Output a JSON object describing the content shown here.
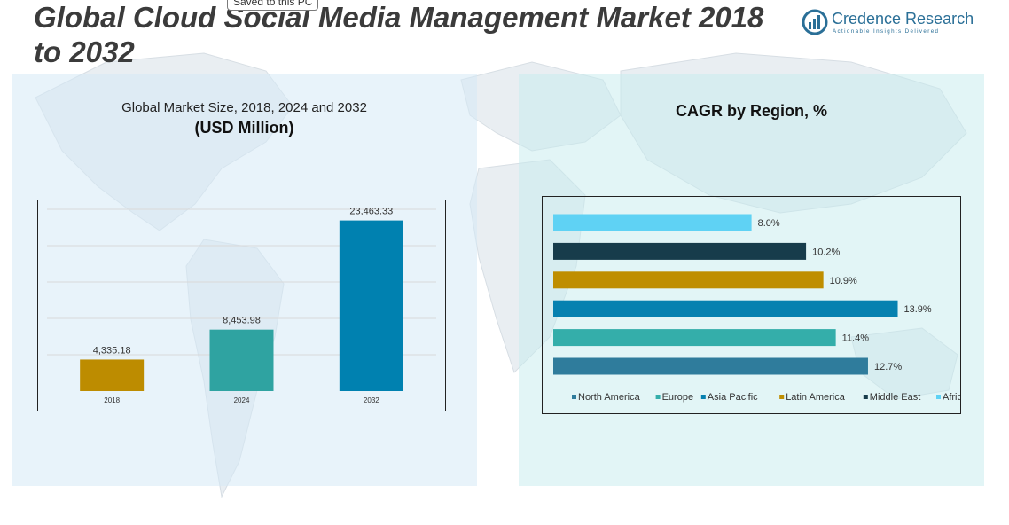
{
  "page": {
    "title": "Global Cloud Social Media Management Market 2018 to 2032",
    "tooltip": "Saved to this PC"
  },
  "logo": {
    "name": "Credence Research",
    "tagline": "Actionable Insights Delivered",
    "color": "#2a6f97",
    "icon": "bar-chart-logo-icon"
  },
  "panels": {
    "left_subtitle": "Global Market Size, 2018, 2024 and 2032",
    "left_unit": "(USD Million)",
    "right_title": "CAGR by Region, %"
  },
  "chart_data": [
    {
      "type": "bar",
      "categories": [
        "2018",
        "2024",
        "2032"
      ],
      "values": [
        4335.18,
        8453.98,
        23463.33
      ],
      "data_labels": [
        "4,335.18",
        "8,453.98",
        "23,463.33"
      ],
      "colors": [
        "#bd8c00",
        "#2fa3a1",
        "#0081b0"
      ],
      "ylim": [
        0,
        25000
      ],
      "grid": true
    },
    {
      "type": "bar",
      "orientation": "horizontal",
      "categories": [
        "North America",
        "Europe",
        "Asia Pacific",
        "Latin America",
        "Middle East",
        "Africa"
      ],
      "values": [
        12.7,
        11.4,
        13.9,
        10.9,
        10.2,
        8.0
      ],
      "data_labels": [
        "12.7%",
        "11.4%",
        "13.9%",
        "10.9%",
        "10.2%",
        "8.0%"
      ],
      "colors": [
        "#2f7c9c",
        "#34aeaa",
        "#0681b0",
        "#bf8e00",
        "#173c4b",
        "#5fd2f4"
      ],
      "legend": "bottom",
      "xlim": [
        0,
        15
      ]
    }
  ]
}
